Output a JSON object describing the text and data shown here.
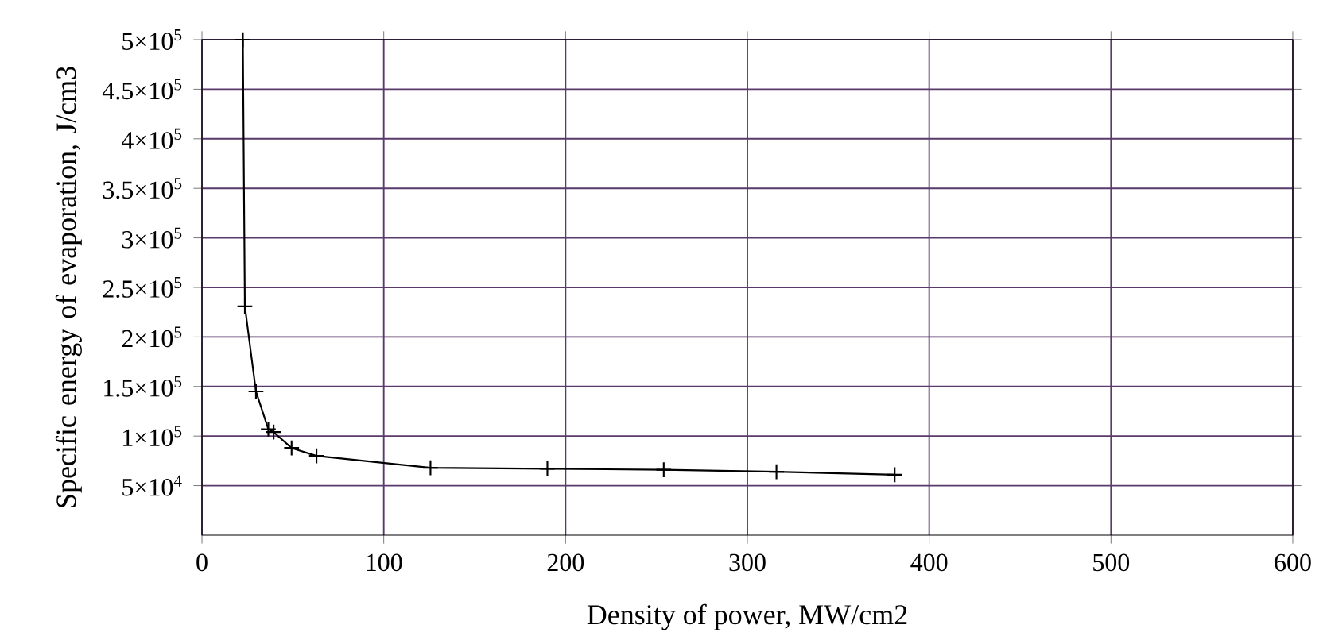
{
  "chart_data": {
    "type": "line",
    "xlabel": "Density of power, MW/cm2",
    "ylabel": "Specific energy of evaporation, J/cm3",
    "x": [
      22.5,
      23.6,
      29.7,
      36.5,
      39.4,
      49.3,
      63,
      125.7,
      190,
      254,
      316,
      381
    ],
    "series": [
      {
        "color": "#000000",
        "values": [
          500000,
          231000,
          145000,
          107000,
          104000,
          88000,
          80000,
          68000,
          67000,
          66000,
          64000,
          61000
        ]
      }
    ],
    "xlim": [
      0,
      600
    ],
    "xticks": [
      0,
      100,
      200,
      300,
      400,
      500,
      600
    ],
    "ylim": [
      0,
      500000
    ],
    "yticks": [
      {
        "value": 50000,
        "label": "5×10$^{4}$"
      },
      {
        "value": 100000,
        "label": "1×10$^{5}$"
      },
      {
        "value": 150000,
        "label": "1.5×10$^{5}$"
      },
      {
        "value": 200000,
        "label": "2×10$^{5}$"
      },
      {
        "value": 250000,
        "label": "2.5×10$^{5}$"
      },
      {
        "value": 300000,
        "label": "3×10$^{5}$"
      },
      {
        "value": 350000,
        "label": "3.5×10$^{5}$"
      },
      {
        "value": 400000,
        "label": "4×10$^{5}$"
      },
      {
        "value": 450000,
        "label": "4.5×10$^{5}$"
      },
      {
        "value": 500000,
        "label": "5×10$^{5}$"
      }
    ],
    "grid": true,
    "marker": "cross",
    "line_style": "solid"
  }
}
